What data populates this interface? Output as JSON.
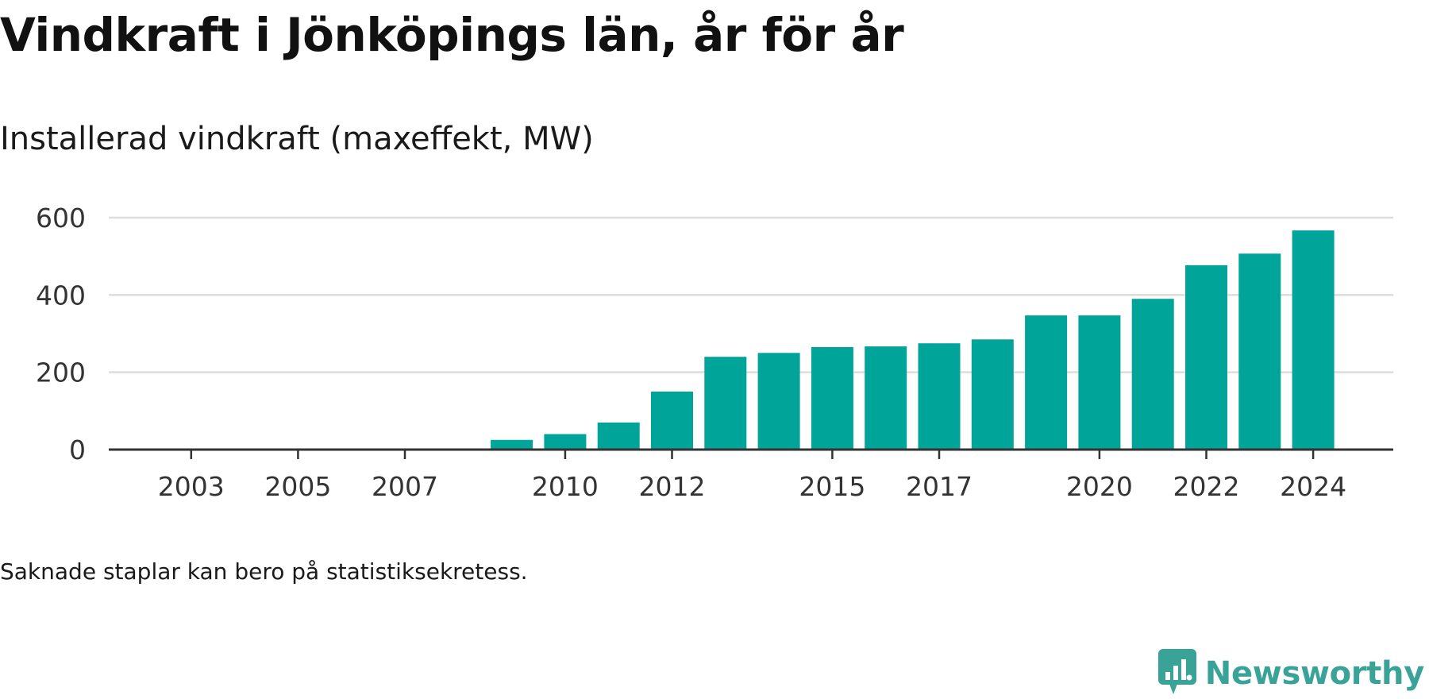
{
  "header": {
    "title": "Vindkraft i Jönköpings län, år för år",
    "subtitle": "Installerad vindkraft (maxeffekt, MW)"
  },
  "footer": {
    "note": "Saknade staplar kan bero på statistiksekretess.",
    "brand_name": "Newsworthy"
  },
  "colors": {
    "bar": "#00a499",
    "grid": "#dddddd",
    "axis": "#333333",
    "brand": "#3aa398"
  },
  "chart_data": {
    "type": "bar",
    "title": "Installerad vindkraft (maxeffekt, MW)",
    "xlabel": "",
    "ylabel": "",
    "x": [
      2002,
      2003,
      2004,
      2005,
      2006,
      2007,
      2008,
      2009,
      2010,
      2011,
      2012,
      2013,
      2014,
      2015,
      2016,
      2017,
      2018,
      2019,
      2020,
      2021,
      2022,
      2023,
      2024
    ],
    "values": [
      0,
      0,
      0,
      0,
      0,
      0,
      3,
      25,
      40,
      70,
      150,
      240,
      250,
      265,
      267,
      275,
      285,
      347,
      347,
      390,
      477,
      507,
      567
    ],
    "x_tick_labels": [
      "2003",
      "2005",
      "2007",
      "2010",
      "2012",
      "2015",
      "2017",
      "2020",
      "2022",
      "2024"
    ],
    "y_ticks": [
      0,
      200,
      400,
      600
    ],
    "ylim": [
      0,
      600
    ],
    "grid": true,
    "legend": "none"
  }
}
